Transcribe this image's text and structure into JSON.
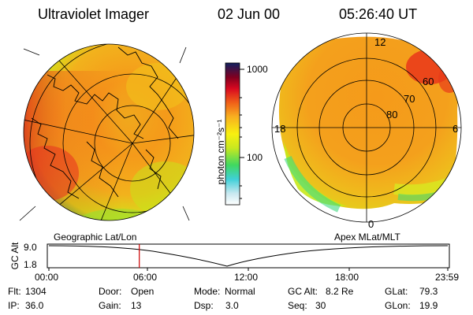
{
  "header": {
    "title": "Ultraviolet Imager",
    "date": "02 Jun 00",
    "time": "05:26:40 UT"
  },
  "colorbar": {
    "unit_label": "photon cm⁻²s⁻¹",
    "ticks": [
      "1000",
      "100"
    ]
  },
  "left_panel": {
    "label": "Geographic Lat/Lon"
  },
  "right_panel": {
    "label": "Apex MLat/MLT",
    "mlt_labels": [
      "12",
      "18",
      "6",
      "0"
    ],
    "lat_labels": [
      "60",
      "70",
      "80"
    ]
  },
  "timeline": {
    "ylabel": "GC Alt",
    "y_ticks": [
      "9.0",
      "1.8"
    ],
    "x_ticks": [
      "00:00",
      "06:00",
      "12:00",
      "18:00",
      "23:59"
    ],
    "current_time_hours": 5.44,
    "marker_color": "#cc0000"
  },
  "info_rows": [
    [
      {
        "label": "Flt:",
        "value": "1304"
      },
      {
        "label": "Door:",
        "value": "Open"
      },
      {
        "label": "Mode:",
        "value": "Normal"
      },
      {
        "label": "GC Alt:",
        "value": "8.2 Re"
      },
      {
        "label": "GLat:",
        "value": "79.3"
      }
    ],
    [
      {
        "label": "IP:",
        "value": "36.0"
      },
      {
        "label": "Gain:",
        "value": "13"
      },
      {
        "label": "Dsp:",
        "value": "3.0"
      },
      {
        "label": "Seq:",
        "value": "30"
      },
      {
        "label": "GLon:",
        "value": "19.9"
      }
    ]
  ]
}
